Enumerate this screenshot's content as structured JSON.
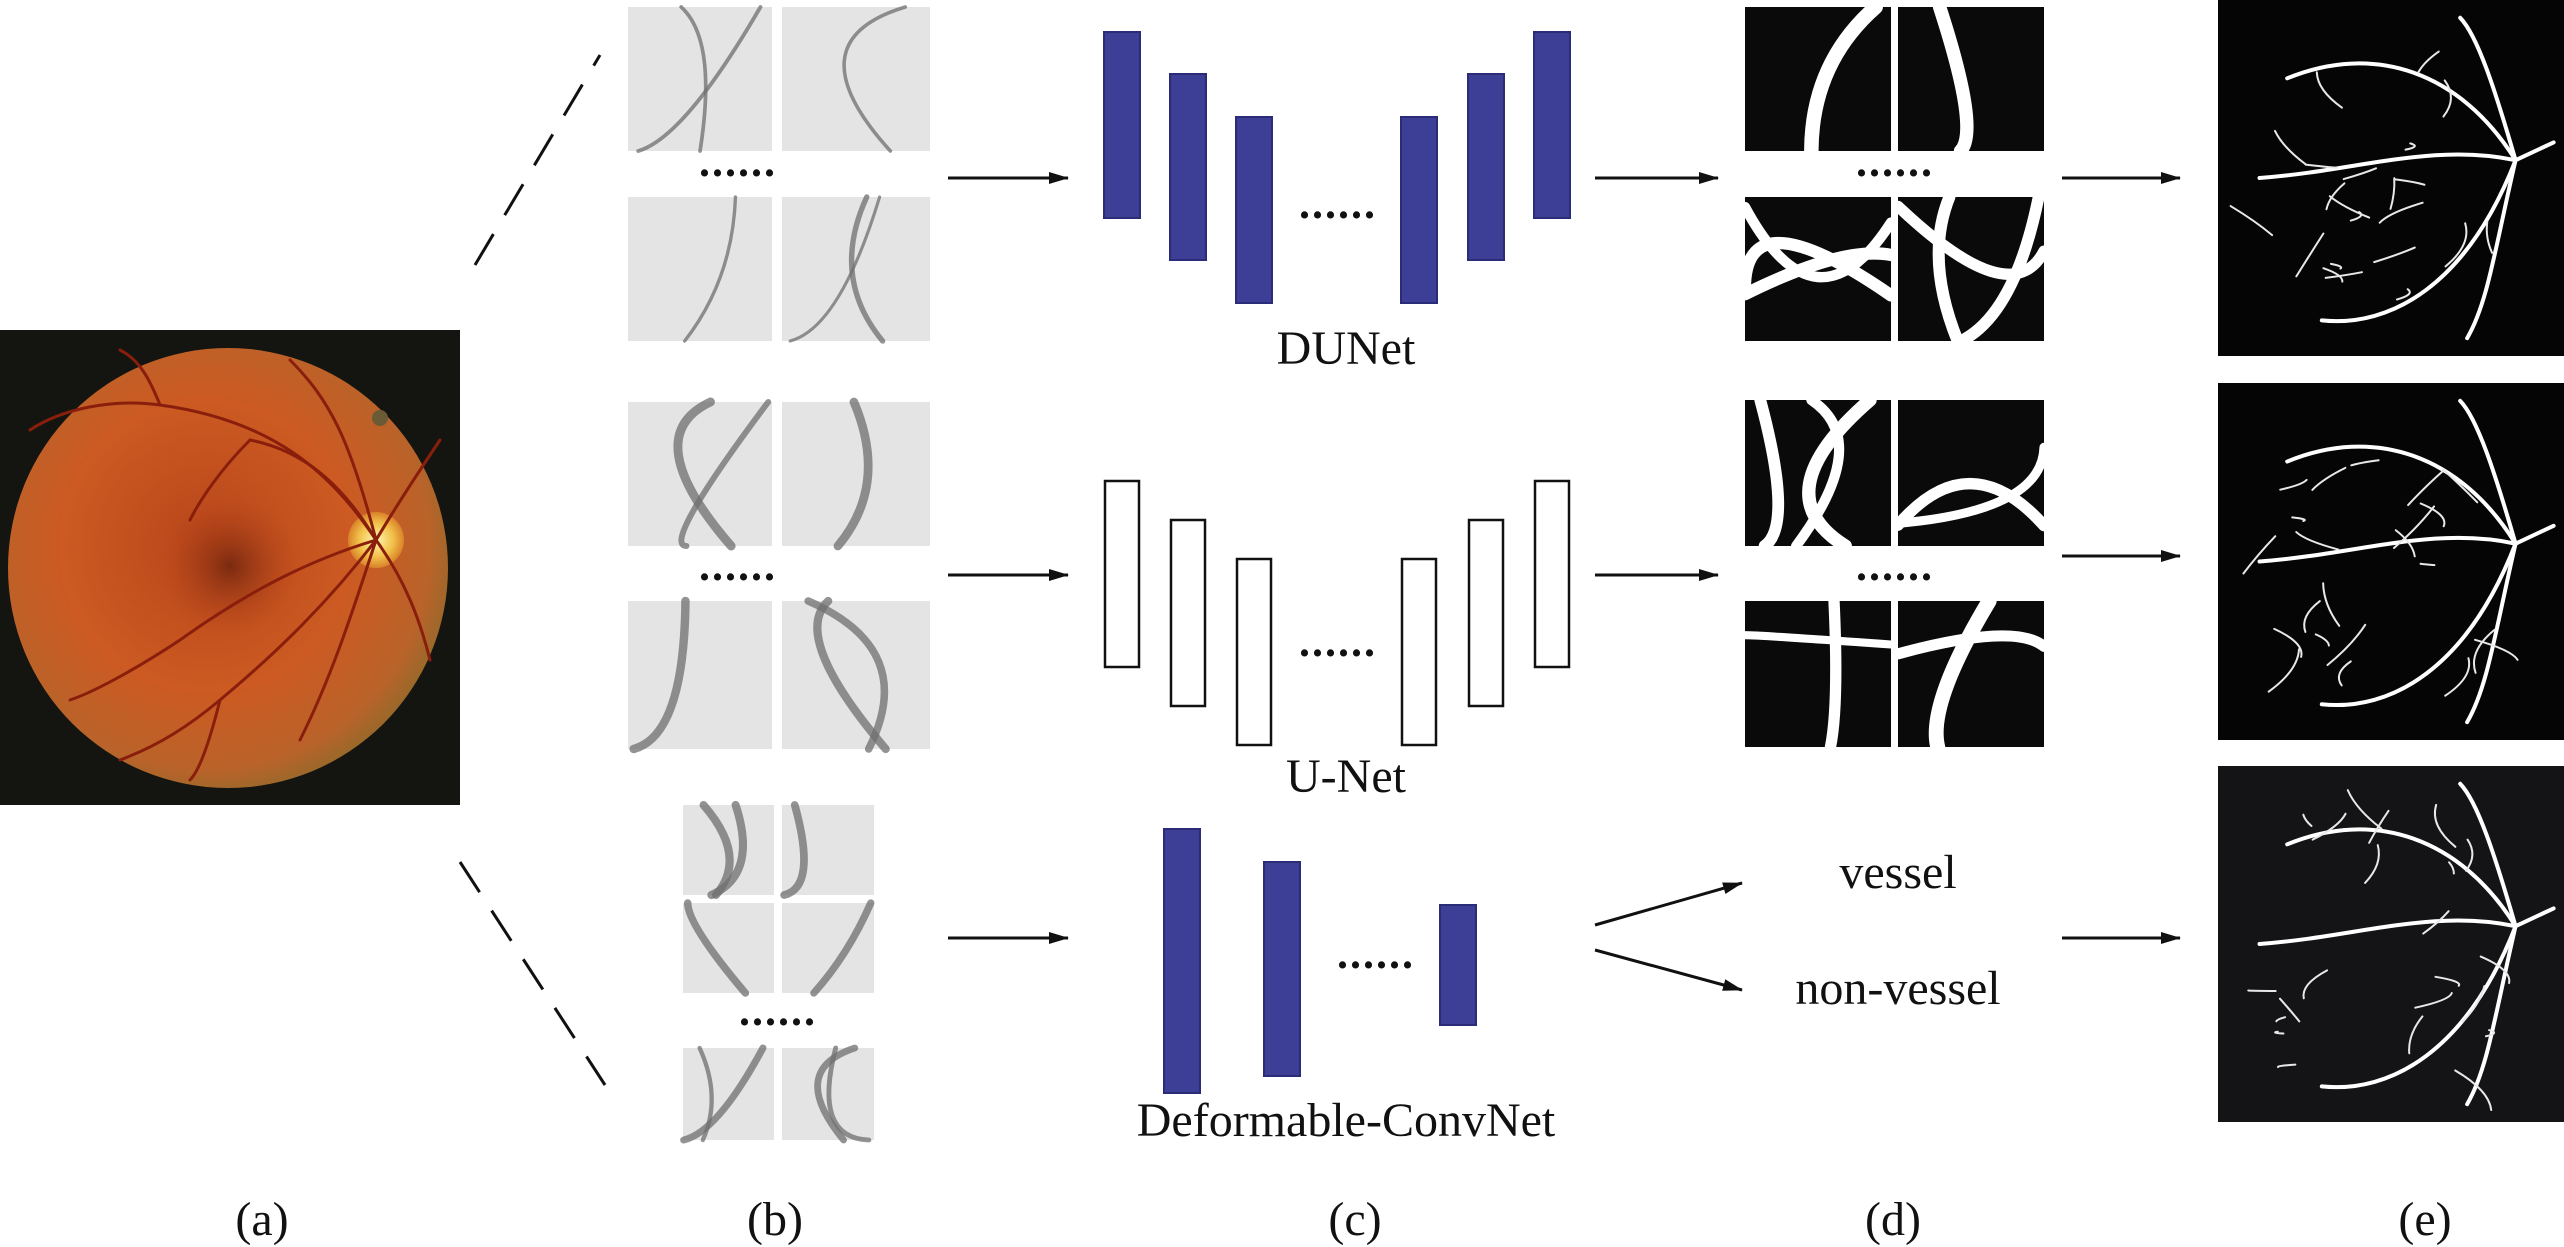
{
  "colors": {
    "background": "#ffffff",
    "layer_fill": "#3d3f97",
    "layer_stroke": "#2a2c78",
    "patch_gray": "#e4e4e4",
    "vessel_gray": "#6f6f6f",
    "mask_bg": "#0a0a0a",
    "fundus_bg": "#141410",
    "fundus_orange": "#c8541e",
    "arrow": "#111111"
  },
  "networks": {
    "top": "DUNet",
    "middle": "U-Net",
    "bottom": "Deformable-ConvNet"
  },
  "outputs": {
    "vessel": "vessel",
    "non_vessel": "non-vessel"
  },
  "ellipsis": "......",
  "column_labels": [
    "(a)",
    "(b)",
    "(c)",
    "(d)",
    "(e)"
  ]
}
